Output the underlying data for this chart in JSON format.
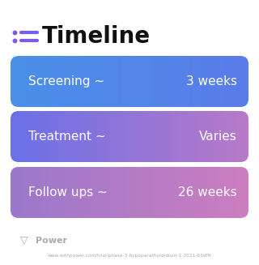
{
  "title": "Timeline",
  "title_icon_color": "#7b5ce8",
  "title_fontsize": 20,
  "background_color": "#ffffff",
  "rows": [
    {
      "label": "Screening ~",
      "value": "3 weeks",
      "color_left": "#4a90e8",
      "color_right": "#5b7ce8"
    },
    {
      "label": "Treatment ~",
      "value": "Varies",
      "color_left": "#6a70e8",
      "color_right": "#b87ac8"
    },
    {
      "label": "Follow ups ~",
      "value": "26 weeks",
      "color_left": "#9b78cc",
      "color_right": "#cc7ec0"
    }
  ],
  "footer_logo_text": "Power",
  "footer_url": "www.withpower.com/trial/phase-3-hypoparathyroidism-1-2021-63df9",
  "footer_color": "#aaaaaa",
  "text_fontsize": 11,
  "text_color": "#ffffff"
}
